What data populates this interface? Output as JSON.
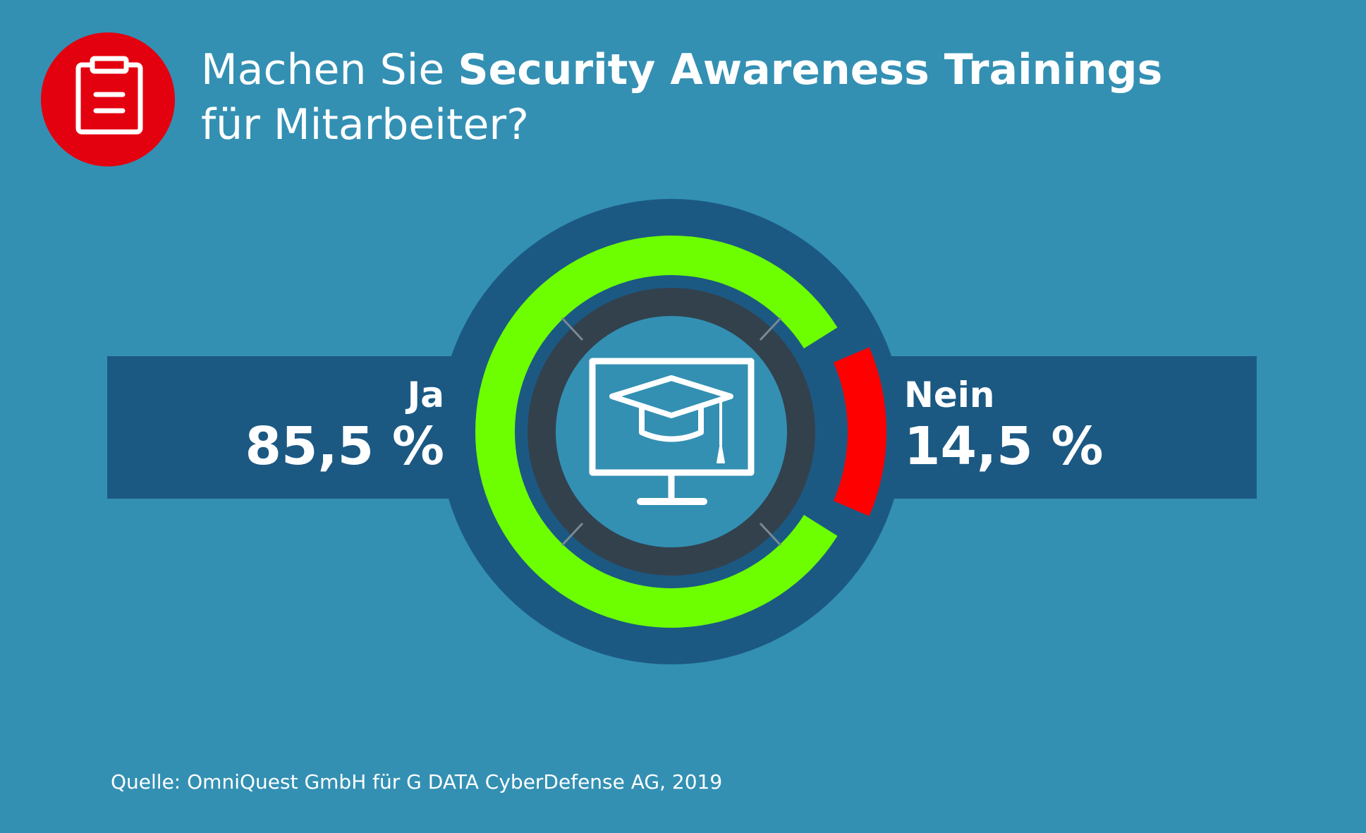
{
  "title": {
    "prefix": "Machen Sie ",
    "bold": "Security Awareness Trainings",
    "line2": "für Mitarbeiter?"
  },
  "icons": {
    "header": "clipboard-icon",
    "center": "monitor-graduation-cap-icon"
  },
  "colors": {
    "background": "#3390b3",
    "band": "#1b5983",
    "ja": "#6dff00",
    "nein": "#ff0000",
    "inner_ring": "#33414d",
    "badge": "#e3000f"
  },
  "chart_data": {
    "type": "pie",
    "variant": "donut",
    "slices": [
      {
        "label": "Ja",
        "value": 85.5,
        "display": "85,5 %",
        "color": "#6dff00"
      },
      {
        "label": "Nein",
        "value": 14.5,
        "display": "14,5 %",
        "color": "#ff0000"
      }
    ]
  },
  "source": "Quelle: OmniQuest GmbH für G DATA CyberDefense AG, 2019"
}
